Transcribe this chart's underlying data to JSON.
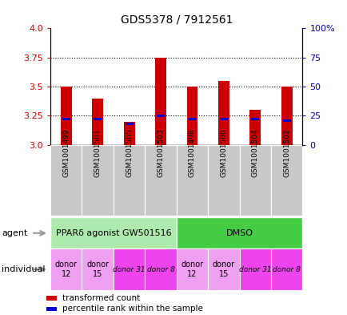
{
  "title": "GDS5378 / 7912561",
  "samples": [
    "GSM1001499",
    "GSM1001501",
    "GSM1001505",
    "GSM1001503",
    "GSM1001498",
    "GSM1001500",
    "GSM1001504",
    "GSM1001502"
  ],
  "red_values": [
    3.5,
    3.4,
    3.2,
    3.75,
    3.5,
    3.55,
    3.3,
    3.5
  ],
  "blue_values": [
    3.22,
    3.22,
    3.18,
    3.25,
    3.22,
    3.22,
    3.22,
    3.21
  ],
  "bar_base": 3.0,
  "ylim": [
    3.0,
    4.0
  ],
  "yticks_left": [
    3.0,
    3.25,
    3.5,
    3.75,
    4.0
  ],
  "yticks_right": [
    0,
    25,
    50,
    75,
    100
  ],
  "ylabel_left_color": "#cc0000",
  "ylabel_right_color": "#0000cc",
  "agent_groups": [
    {
      "label": "PPARδ agonist GW501516",
      "start": 0,
      "end": 4,
      "color": "#aeeaae"
    },
    {
      "label": "DMSO",
      "start": 4,
      "end": 8,
      "color": "#44cc44"
    }
  ],
  "individual_groups": [
    {
      "label": "donor\n12",
      "start": 0,
      "end": 1,
      "color": "#f0a0f0",
      "fontsize": 7,
      "italic": false
    },
    {
      "label": "donor\n15",
      "start": 1,
      "end": 2,
      "color": "#f0a0f0",
      "fontsize": 7,
      "italic": false
    },
    {
      "label": "donor 31",
      "start": 2,
      "end": 3,
      "color": "#ee44ee",
      "fontsize": 6.5,
      "italic": true
    },
    {
      "label": "donor 8",
      "start": 3,
      "end": 4,
      "color": "#ee44ee",
      "fontsize": 6.5,
      "italic": true
    },
    {
      "label": "donor\n12",
      "start": 4,
      "end": 5,
      "color": "#f0a0f0",
      "fontsize": 7,
      "italic": false
    },
    {
      "label": "donor\n15",
      "start": 5,
      "end": 6,
      "color": "#f0a0f0",
      "fontsize": 7,
      "italic": false
    },
    {
      "label": "donor 31",
      "start": 6,
      "end": 7,
      "color": "#ee44ee",
      "fontsize": 6.5,
      "italic": true
    },
    {
      "label": "donor 8",
      "start": 7,
      "end": 8,
      "color": "#ee44ee",
      "fontsize": 6.5,
      "italic": true
    }
  ],
  "red_color": "#cc0000",
  "blue_color": "#0000cc",
  "bar_width": 0.35,
  "blue_bar_width": 0.25,
  "blue_bar_height": 0.022,
  "sample_box_color": "#c8c8c8",
  "dotted_lines": [
    3.25,
    3.5,
    3.75
  ],
  "arrow_color": "#999999"
}
